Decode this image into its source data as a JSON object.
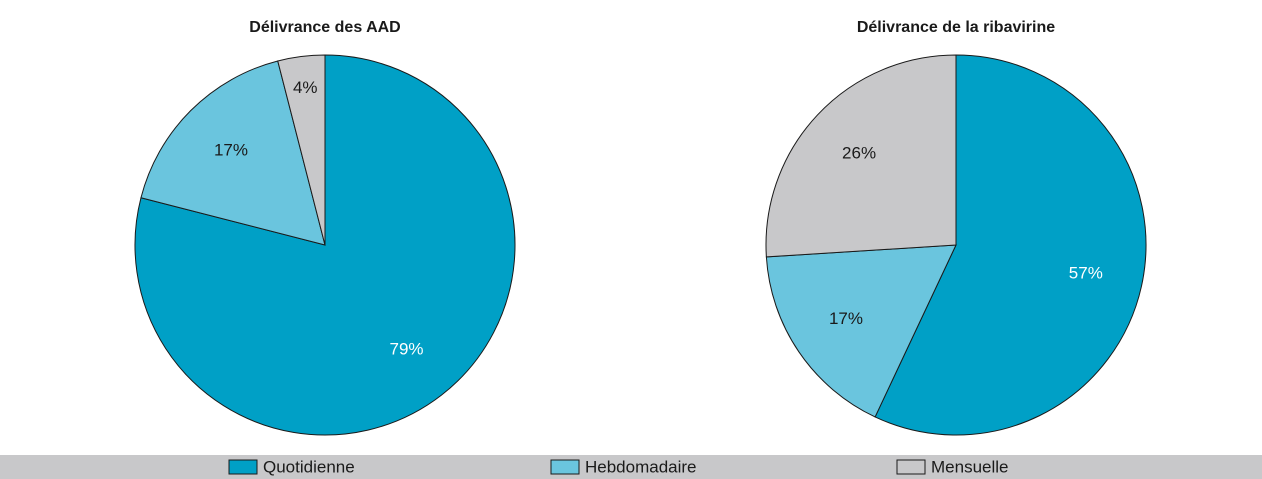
{
  "chart_data": [
    {
      "type": "pie",
      "title": "Délivrance des AAD",
      "categories": [
        "Quotidienne",
        "Hebdomadaire",
        "Mensuelle"
      ],
      "values": [
        79,
        17,
        4
      ],
      "value_labels": [
        "79%",
        "17%",
        "4%"
      ],
      "colors": [
        "#00a0c6",
        "#6ac5de",
        "#c8c8ca"
      ]
    },
    {
      "type": "pie",
      "title": "Délivrance de la ribavirine",
      "categories": [
        "Quotidienne",
        "Hebdomadaire",
        "Mensuelle"
      ],
      "values": [
        57,
        17,
        26
      ],
      "value_labels": [
        "57%",
        "17%",
        "26%"
      ],
      "colors": [
        "#00a0c6",
        "#6ac5de",
        "#c8c8ca"
      ]
    }
  ]
}
